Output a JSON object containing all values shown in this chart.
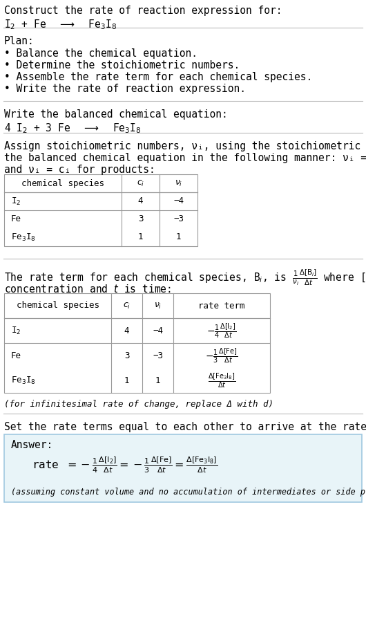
{
  "bg_color": "#ffffff",
  "text_color": "#000000",
  "title_line1": "Construct the rate of reaction expression for:",
  "plan_title": "Plan:",
  "plan_bullets": [
    "• Balance the chemical equation.",
    "• Determine the stoichiometric numbers.",
    "• Assemble the rate term for each chemical species.",
    "• Write the rate of reaction expression."
  ],
  "balanced_eq_label": "Write the balanced chemical equation:",
  "stoich_intro_line1": "Assign stoichiometric numbers, νᵢ, using the stoichiometric coefficients, cᵢ, from",
  "stoich_intro_line2": "the balanced chemical equation in the following manner: νᵢ = −cᵢ for reactants",
  "stoich_intro_line3": "and νᵢ = cᵢ for products:",
  "table1_headers": [
    "chemical species",
    "cᵢ",
    "νᵢ"
  ],
  "table1_rows": [
    [
      "I₂",
      "4",
      "−4"
    ],
    [
      "Fe",
      "3",
      "−3"
    ],
    [
      "Fe₃I₈",
      "1",
      "1"
    ]
  ],
  "rate_intro_line1": "The rate term for each chemical species, Bᵢ, is",
  "rate_intro_line2": "where [Bᵢ] is the amount",
  "rate_intro_line3": "concentration and t is time:",
  "table2_headers": [
    "chemical species",
    "cᵢ",
    "νᵢ",
    "rate term"
  ],
  "table2_rows": [
    [
      "I₂",
      "4",
      "−4"
    ],
    [
      "Fe",
      "3",
      "−3"
    ],
    [
      "Fe₃I₈",
      "1",
      "1"
    ]
  ],
  "delta_note": "(for infinitesimal rate of change, replace Δ with d)",
  "set_equal_text": "Set the rate terms equal to each other to arrive at the rate expression:",
  "answer_box_color": "#e8f4f8",
  "answer_box_border": "#a0c8e0",
  "answer_label": "Answer:",
  "answer_note": "(assuming constant volume and no accumulation of intermediates or side products)"
}
